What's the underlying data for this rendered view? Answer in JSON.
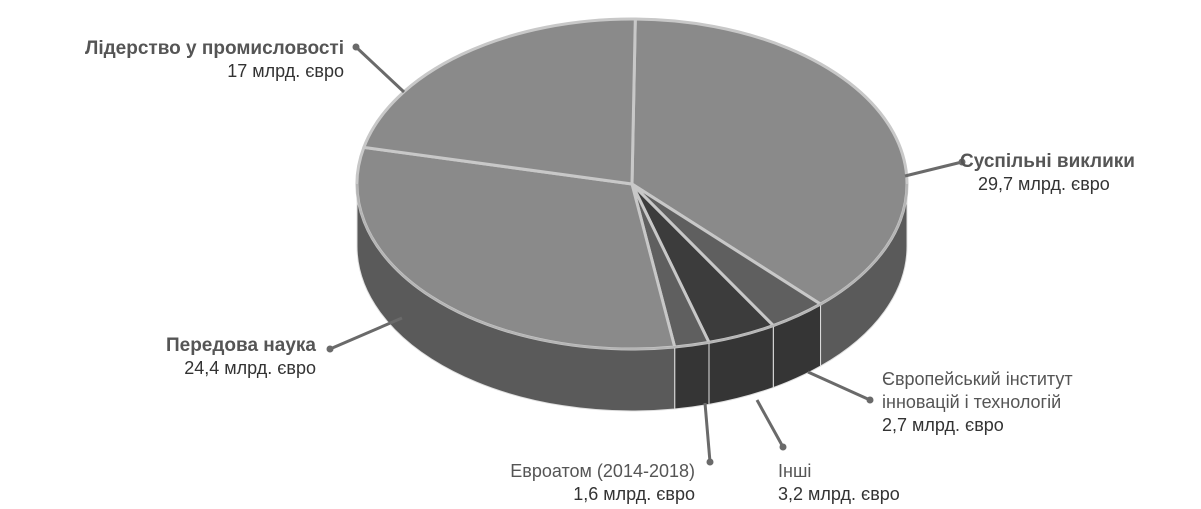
{
  "chart_data": {
    "type": "pie",
    "style": "3d",
    "title": "",
    "legend": "none",
    "slices": [
      {
        "label": "Суспільні виклики",
        "value_text": "29,7 млрд. євро",
        "value": 29.7,
        "bold": true
      },
      {
        "label": "Європейський інститут інновацій і технологій",
        "label_lines": [
          "Європейський інститут",
          "інновацій і технологій"
        ],
        "value_text": "2,7 млрд. євро",
        "value": 2.7,
        "bold": false
      },
      {
        "label": "Інші",
        "value_text": "3,2 млрд. євро",
        "value": 3.2,
        "bold": false
      },
      {
        "label": "Евроатом (2014-2018)",
        "value_text": "1,6 млрд. євро",
        "value": 1.6,
        "bold": false
      },
      {
        "label": "Передова наука",
        "value_text": "24,4 млрд. євро",
        "value": 24.4,
        "bold": true
      },
      {
        "label": "Лідерство у промисловості",
        "value_text": "17 млрд. євро",
        "value": 17,
        "bold": true
      }
    ],
    "colors": {
      "top_main": "#8a8a8a",
      "top_dark": "#5f5f5f",
      "top_darker": "#3c3c3c",
      "side_main": "#5a5a5a",
      "side_dark": "#353535",
      "separator": "#c8c8c8",
      "leader": "#6a6a6a"
    }
  }
}
